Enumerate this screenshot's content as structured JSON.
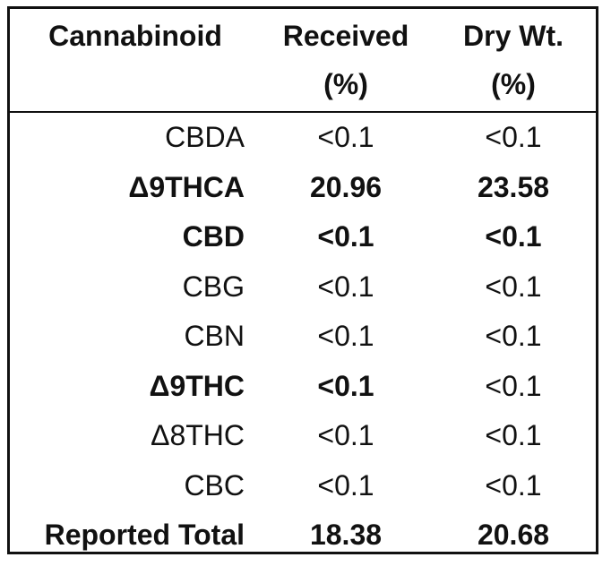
{
  "header": {
    "col1": "Cannabinoid",
    "col2_line1": "Received",
    "col2_line2": "(%)",
    "col3_line1": "Dry Wt.",
    "col3_line2": "(%)"
  },
  "rows": [
    {
      "name": "CBDA",
      "received": "<0.1",
      "dry": "<0.1",
      "name_bold": false,
      "received_bold": false,
      "dry_bold": false
    },
    {
      "name": "Δ9THCA",
      "received": "20.96",
      "dry": "23.58",
      "name_bold": true,
      "received_bold": true,
      "dry_bold": true
    },
    {
      "name": "CBD",
      "received": "<0.1",
      "dry": "<0.1",
      "name_bold": true,
      "received_bold": true,
      "dry_bold": true
    },
    {
      "name": "CBG",
      "received": "<0.1",
      "dry": "<0.1",
      "name_bold": false,
      "received_bold": false,
      "dry_bold": false
    },
    {
      "name": "CBN",
      "received": "<0.1",
      "dry": "<0.1",
      "name_bold": false,
      "received_bold": false,
      "dry_bold": false
    },
    {
      "name": "Δ9THC",
      "received": "<0.1",
      "dry": "<0.1",
      "name_bold": true,
      "received_bold": true,
      "dry_bold": false
    },
    {
      "name": "Δ8THC",
      "received": "<0.1",
      "dry": "<0.1",
      "name_bold": false,
      "received_bold": false,
      "dry_bold": false
    },
    {
      "name": "CBC",
      "received": "<0.1",
      "dry": "<0.1",
      "name_bold": false,
      "received_bold": false,
      "dry_bold": false
    }
  ],
  "total": {
    "name": "Reported Total",
    "received": "18.38",
    "dry": "20.68"
  }
}
